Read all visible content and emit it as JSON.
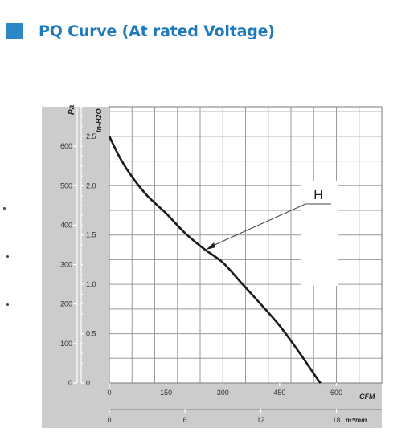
{
  "heading": {
    "title": "PQ Curve (At rated Voltage)",
    "accent_color": "#2d86c6"
  },
  "chart_data": {
    "type": "line",
    "title": "",
    "y_axis_pa": {
      "label": "Pa",
      "range": [
        0,
        700
      ],
      "ticks": [
        "0",
        "100",
        "200",
        "300",
        "400",
        "500",
        "600"
      ]
    },
    "y_axis_inh2o": {
      "label": "In-H2O",
      "range": [
        0,
        2.8
      ],
      "ticks": [
        "0",
        "0.5",
        "1.0",
        "1.5",
        "2.0",
        "2.5"
      ]
    },
    "x_axis_cfm": {
      "label": "CFM",
      "range": [
        0,
        720
      ],
      "ticks": [
        "0",
        "150",
        "300",
        "450",
        "600"
      ]
    },
    "x_axis_m3min": {
      "label": "m³/min",
      "ticks": [
        "0",
        "6",
        "12",
        "18"
      ]
    },
    "series": [
      {
        "name": "H",
        "x_cfm": [
          0,
          30,
          60,
          100,
          150,
          200,
          250,
          300,
          350,
          400,
          450,
          500,
          550,
          600
        ],
        "y_inh2o": [
          2.5,
          2.27,
          2.09,
          1.9,
          1.72,
          1.52,
          1.36,
          1.22,
          1.01,
          0.8,
          0.58,
          0.32,
          0.04,
          -0.2
        ]
      }
    ],
    "annotation": {
      "label": "H",
      "point_cfm": 255,
      "point_inh2o": 1.35
    },
    "grid": true,
    "background_color": "#cccccc",
    "line_color": "#1a1a1a"
  }
}
